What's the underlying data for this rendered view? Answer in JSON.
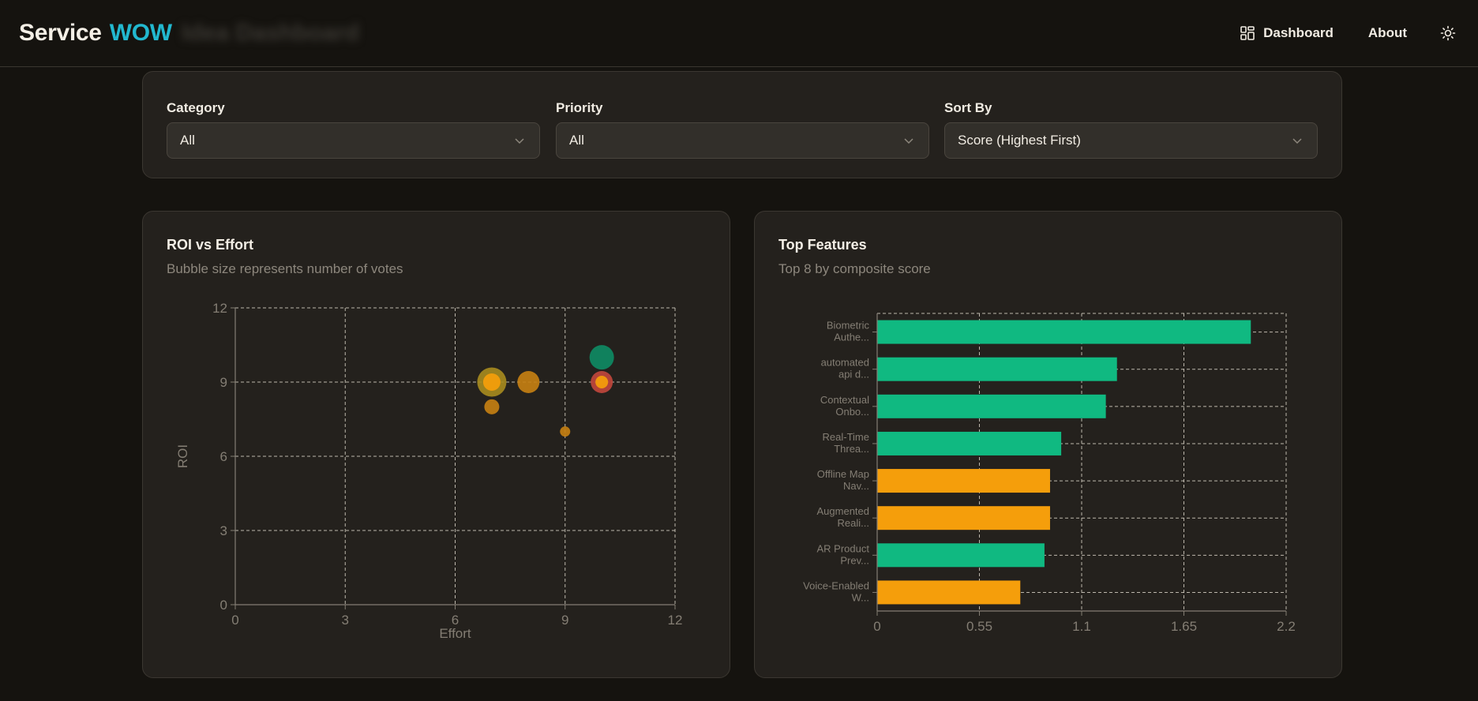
{
  "header": {
    "brand_main": "Service",
    "brand_accent": "WOW",
    "brand_ghost": "Idea Dashboard",
    "nav": [
      {
        "label": "Dashboard",
        "icon": "dashboard-grid-icon"
      },
      {
        "label": "About"
      }
    ],
    "theme_icon": "sun-icon"
  },
  "filters": [
    {
      "label": "Category",
      "value": "All"
    },
    {
      "label": "Priority",
      "value": "All"
    },
    {
      "label": "Sort By",
      "value": "Score (Highest First)"
    }
  ],
  "roi_card": {
    "title": "ROI vs Effort",
    "subtitle": "Bubble size represents number of votes"
  },
  "top_card": {
    "title": "Top Features",
    "subtitle": "Top 8 by composite score"
  },
  "colors": {
    "green": "#10b981",
    "green_dark": "#0f8a63",
    "orange": "#f59e0b",
    "orange_dark": "#c47f12",
    "red": "#c0463c",
    "olive": "#a68a1e",
    "grid": "#d8d2c6",
    "axis_text": "#847e74"
  },
  "chart_data": [
    {
      "type": "scatter",
      "title": "ROI vs Effort",
      "subtitle": "Bubble size represents number of votes",
      "xlabel": "Effort",
      "ylabel": "ROI",
      "xlim": [
        0,
        12
      ],
      "ylim": [
        0,
        12
      ],
      "xticks": [
        "0",
        "3",
        "6",
        "9",
        "12"
      ],
      "yticks": [
        "0",
        "3",
        "6",
        "9",
        "12"
      ],
      "grid": true,
      "points": [
        {
          "x": 7,
          "y": 9,
          "votes": 9,
          "color": "#a68a1e"
        },
        {
          "x": 7,
          "y": 9,
          "votes": 4,
          "color": "#f59e0b"
        },
        {
          "x": 8,
          "y": 9,
          "votes": 6,
          "color": "#c47f12"
        },
        {
          "x": 7,
          "y": 8,
          "votes": 3,
          "color": "#c47f12"
        },
        {
          "x": 9,
          "y": 7,
          "votes": 1,
          "color": "#c47f12"
        },
        {
          "x": 10,
          "y": 10,
          "votes": 7,
          "color": "#0f8a63"
        },
        {
          "x": 10,
          "y": 9,
          "votes": 6,
          "color": "#c0463c"
        },
        {
          "x": 10,
          "y": 9,
          "votes": 2,
          "color": "#f59e0b"
        }
      ]
    },
    {
      "type": "bar",
      "orientation": "horizontal",
      "title": "Top Features",
      "subtitle": "Top 8 by composite score",
      "xlim": [
        0,
        2.2
      ],
      "xticks": [
        "0",
        "0.55",
        "1.1",
        "1.65",
        "2.2"
      ],
      "grid": true,
      "categories": [
        [
          "Biometric",
          "Authe..."
        ],
        [
          "automated",
          "api d..."
        ],
        [
          "Contextual",
          "Onbo..."
        ],
        [
          "Real-Time",
          "Threa..."
        ],
        [
          "Offline Map",
          "Nav..."
        ],
        [
          "Augmented",
          "Reali..."
        ],
        [
          "AR Product",
          "Prev..."
        ],
        [
          "Voice-Enabled",
          "W..."
        ]
      ],
      "values": [
        2.01,
        1.29,
        1.23,
        0.99,
        0.93,
        0.93,
        0.9,
        0.77
      ],
      "bar_colors": [
        "#10b981",
        "#10b981",
        "#10b981",
        "#10b981",
        "#f59e0b",
        "#f59e0b",
        "#10b981",
        "#f59e0b"
      ]
    }
  ]
}
